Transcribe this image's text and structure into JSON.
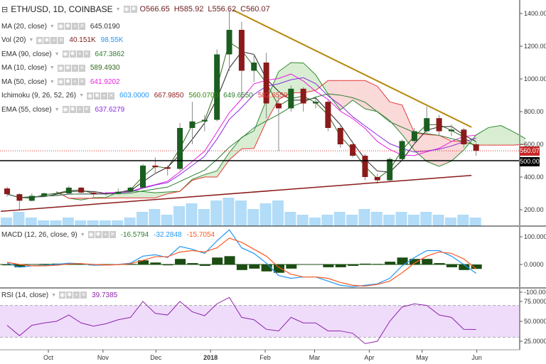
{
  "header": {
    "symbol": "ETH/USD, 1D, COINBASE",
    "open": "O566.65",
    "high": "H585.92",
    "low": "L556.62",
    "close": "C560.07"
  },
  "indicators": [
    {
      "label": "MA (20, close)",
      "values": [
        "645.0190"
      ],
      "colors": [
        "#333333"
      ]
    },
    {
      "label": "Vol (20)",
      "values": [
        "40.151K",
        "98.55K"
      ],
      "colors": [
        "#7b1a1a",
        "#2196f3"
      ]
    },
    {
      "label": "EMA (90, close)",
      "values": [
        "647.3862"
      ],
      "colors": [
        "#2e7d32"
      ]
    },
    {
      "label": "MA (10, close)",
      "values": [
        "589.4930"
      ],
      "colors": [
        "#33691e"
      ]
    },
    {
      "label": "MA (50, close)",
      "values": [
        "641.9202"
      ],
      "colors": [
        "#e91ee0"
      ]
    },
    {
      "label": "Ichimoku (9, 26, 52, 26)",
      "values": [
        "603.0000",
        "667.9850",
        "560.0700",
        "649.6550",
        "582.6550"
      ],
      "colors": [
        "#2196f3",
        "#8b1a1a",
        "#2e8b00",
        "#2e7d32",
        "#e53935"
      ]
    },
    {
      "label": "EMA (55, close)",
      "values": [
        "637.6279"
      ],
      "colors": [
        "#8a2be2"
      ]
    }
  ],
  "macd_legend": {
    "label": "MACD (12, 26, close, 9)",
    "values": [
      "-16.5794",
      "-32.2848",
      "-15.7054"
    ],
    "colors": [
      "#2e7d32",
      "#2196f3",
      "#ff5722"
    ]
  },
  "rsi_legend": {
    "label": "RSI (14, close)",
    "values": [
      "39.7385"
    ],
    "colors": [
      "#8e24aa"
    ]
  },
  "price_tags": {
    "last": "560.07",
    "level": "500.00",
    "last_color": "#c62828"
  },
  "chart_data": [
    {
      "type": "candlestick",
      "title": "ETH/USD, 1D, COINBASE",
      "ylim": [
        130,
        1500
      ],
      "yticks": [
        "1400.00",
        "1200.00",
        "1000.00",
        "800.00",
        "600.00",
        "400.00",
        "200.00"
      ],
      "xticks": [
        "Oct",
        "Nov",
        "Dec",
        "2018",
        "Feb",
        "Mar",
        "Apr",
        "May",
        "Jun"
      ],
      "candles": [
        [
          "2017-09-04",
          330,
          340,
          280,
          295
        ],
        [
          "2017-09-11",
          295,
          300,
          200,
          255
        ],
        [
          "2017-09-18",
          255,
          300,
          250,
          285
        ],
        [
          "2017-09-25",
          285,
          305,
          280,
          300
        ],
        [
          "2017-10-02",
          300,
          310,
          290,
          300
        ],
        [
          "2017-10-09",
          300,
          345,
          295,
          335
        ],
        [
          "2017-10-16",
          335,
          340,
          295,
          305
        ],
        [
          "2017-10-23",
          305,
          310,
          280,
          295
        ],
        [
          "2017-10-30",
          295,
          310,
          285,
          300
        ],
        [
          "2017-11-06",
          300,
          330,
          290,
          310
        ],
        [
          "2017-11-13",
          310,
          340,
          300,
          335
        ],
        [
          "2017-11-20",
          335,
          480,
          330,
          470
        ],
        [
          "2017-11-27",
          470,
          520,
          420,
          460
        ],
        [
          "2017-12-04",
          460,
          470,
          410,
          450
        ],
        [
          "2017-12-11",
          450,
          730,
          440,
          700
        ],
        [
          "2017-12-18",
          700,
          860,
          600,
          740
        ],
        [
          "2017-12-25",
          740,
          780,
          680,
          750
        ],
        [
          "2018-01-01",
          750,
          1180,
          740,
          1150
        ],
        [
          "2018-01-08",
          1150,
          1420,
          1050,
          1300
        ],
        [
          "2018-01-15",
          1300,
          1350,
          880,
          1050
        ],
        [
          "2018-01-22",
          1050,
          1150,
          980,
          1100
        ],
        [
          "2018-01-29",
          1100,
          1160,
          760,
          850
        ],
        [
          "2018-02-05",
          850,
          900,
          560,
          820
        ],
        [
          "2018-02-12",
          820,
          960,
          800,
          940
        ],
        [
          "2018-02-19",
          940,
          950,
          800,
          850
        ],
        [
          "2018-02-26",
          850,
          880,
          820,
          860
        ],
        [
          "2018-03-05",
          860,
          870,
          680,
          700
        ],
        [
          "2018-03-12",
          700,
          720,
          580,
          600
        ],
        [
          "2018-03-19",
          600,
          620,
          520,
          530
        ],
        [
          "2018-03-26",
          530,
          540,
          380,
          400
        ],
        [
          "2018-04-02",
          400,
          420,
          360,
          380
        ],
        [
          "2018-04-09",
          380,
          520,
          370,
          510
        ],
        [
          "2018-04-16",
          510,
          630,
          500,
          620
        ],
        [
          "2018-04-23",
          620,
          700,
          600,
          680
        ],
        [
          "2018-04-30",
          680,
          830,
          660,
          760
        ],
        [
          "2018-05-07",
          760,
          780,
          650,
          680
        ],
        [
          "2018-05-14",
          680,
          720,
          650,
          690
        ],
        [
          "2018-05-21",
          690,
          700,
          580,
          600
        ],
        [
          "2018-05-28",
          600,
          610,
          530,
          560
        ]
      ],
      "volume": [
        3,
        5,
        3,
        2,
        2,
        3,
        2,
        2,
        2,
        2,
        3,
        5,
        6,
        4,
        7,
        8,
        6,
        9,
        10,
        9,
        6,
        8,
        9,
        5,
        4,
        3,
        4,
        5,
        4,
        6,
        5,
        4,
        5,
        4,
        5,
        4,
        3,
        4,
        3
      ],
      "overlays": {
        "horizontal_level": 500,
        "last_price": 560.07,
        "resistance_trendline": [
          [
            "2018-01-14",
            1420
          ],
          [
            "2018-05-29",
            705
          ]
        ],
        "support_trendline": [
          [
            "2017-09-04",
            190
          ],
          [
            "2018-05-29",
            410
          ]
        ]
      },
      "grid": false
    },
    {
      "type": "line",
      "title": "MACD (12, 26, close, 9)",
      "ylim": [
        -110,
        130
      ],
      "yticks": [
        "100.0000",
        "0.0000",
        "-100.0000"
      ],
      "series": [
        {
          "name": "MACD",
          "values": [
            5,
            -10,
            -5,
            -3,
            0,
            5,
            3,
            -3,
            -2,
            0,
            5,
            30,
            35,
            25,
            65,
            55,
            40,
            85,
            125,
            60,
            40,
            5,
            -40,
            -50,
            -45,
            -45,
            -60,
            -75,
            -80,
            -75,
            -70,
            -50,
            -5,
            25,
            50,
            50,
            30,
            0,
            -32
          ]
        },
        {
          "name": "Signal",
          "values": [
            8,
            0,
            -5,
            -5,
            -3,
            2,
            3,
            0,
            -2,
            -1,
            3,
            15,
            28,
            28,
            45,
            50,
            45,
            60,
            95,
            80,
            55,
            30,
            -10,
            -35,
            -45,
            -45,
            -50,
            -65,
            -75,
            -78,
            -72,
            -60,
            -30,
            5,
            30,
            45,
            40,
            20,
            -16
          ]
        }
      ]
    },
    {
      "type": "line",
      "title": "RSI (14, close)",
      "ylim": [
        15,
        85
      ],
      "yticks": [
        "75.0000",
        "50.0000",
        "25.0000"
      ],
      "band": [
        30,
        70
      ],
      "series": [
        {
          "name": "RSI",
          "values": [
            45,
            32,
            45,
            48,
            50,
            58,
            48,
            44,
            47,
            52,
            55,
            75,
            60,
            58,
            75,
            62,
            57,
            72,
            80,
            55,
            52,
            40,
            38,
            55,
            48,
            48,
            38,
            38,
            35,
            22,
            25,
            50,
            68,
            72,
            70,
            58,
            55,
            40,
            39.7
          ]
        }
      ]
    }
  ]
}
